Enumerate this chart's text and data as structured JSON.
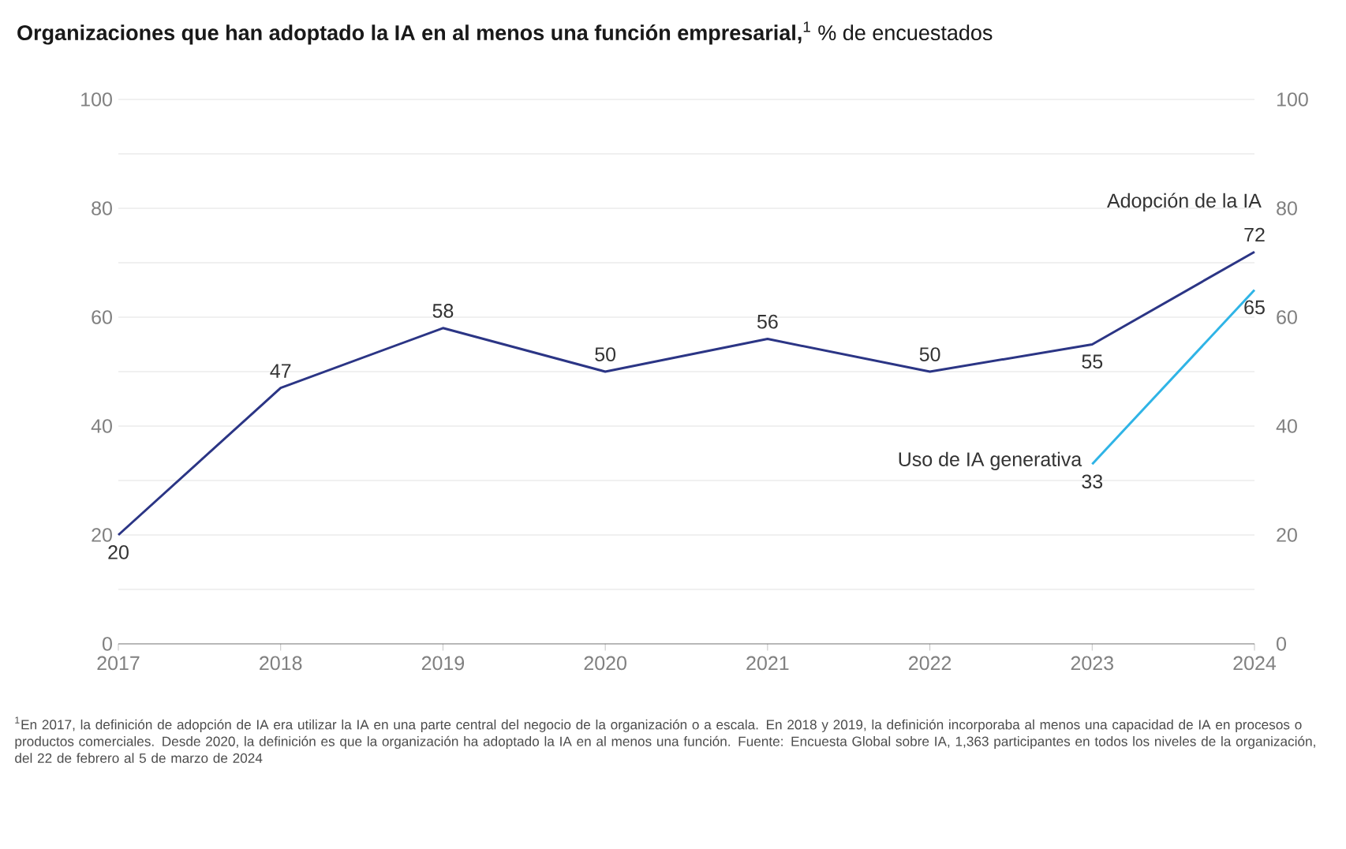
{
  "chart_data": {
    "type": "line",
    "title": "**Organizaciones que han adoptado la IA en al menos una función empresarial,**$^{1}$ % de encuestados",
    "categories": [
      "2017",
      "2018",
      "2019",
      "2020",
      "2021",
      "2022",
      "2023",
      "2024"
    ],
    "series": [
      {
        "name": "Adopción de la IA",
        "color": "#2b3585",
        "values": [
          20,
          47,
          58,
          50,
          56,
          50,
          55,
          72
        ]
      },
      {
        "name": "Uso de IA generativa",
        "color": "#2fb4e6",
        "values": [
          null,
          null,
          null,
          null,
          null,
          null,
          33,
          65
        ]
      }
    ],
    "ylim": [
      0,
      100
    ],
    "yticks": [
      0,
      {
        "value": 10,
        "label": null
      },
      20,
      {
        "value": 30,
        "label": null
      },
      40,
      {
        "value": 50,
        "label": null
      },
      60,
      {
        "value": 70,
        "label": null
      },
      80,
      {
        "value": 90,
        "label": null
      },
      100
    ],
    "y2lim": [
      0,
      100
    ],
    "y2ticks": [
      0,
      20,
      40,
      60,
      80,
      100
    ],
    "grid": "y",
    "data_labels": true,
    "legend": false,
    "marker": "none",
    "line_style": "solid",
    "annotations": [
      "$^{1}$En 2017, la definición de adopción de IA era utilizar la IA en una parte central del negocio de la organización o a escala. En 2018 y 2019, la definición incorporaba al menos una capacidad de IA en procesos o productos comerciales. Desde 2020, la definición es que la organización ha adoptado la IA en al menos una función. Fuente: Encuesta Global sobre IA, 1,363 participantes en todos los niveles de la organización, del 22 de febrero al 5 de marzo de 2024"
    ]
  }
}
